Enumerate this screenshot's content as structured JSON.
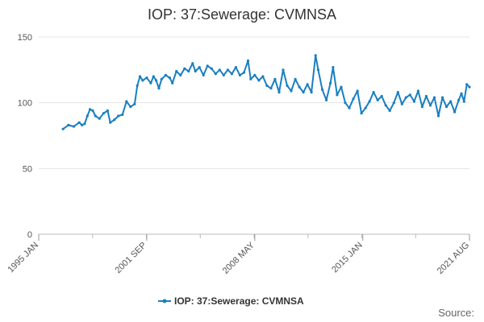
{
  "chart_data": {
    "type": "line",
    "title": "IOP: 37:Sewerage: CVMNSA",
    "xlabel": "",
    "ylabel": "",
    "ylim": [
      0,
      150
    ],
    "y_ticks": [
      0,
      50,
      100,
      150
    ],
    "x_range": [
      "1995-01",
      "2021-08"
    ],
    "x_tick_labels": [
      {
        "label": "1995 JAN",
        "date": "1995-01"
      },
      {
        "label": "2001 SEP",
        "date": "2001-09"
      },
      {
        "label": "2008 MAY",
        "date": "2008-05"
      },
      {
        "label": "2015 JAN",
        "date": "2015-01"
      },
      {
        "label": "2021 AUG",
        "date": "2021-08"
      }
    ],
    "grid": true,
    "legend_position": "bottom",
    "series": [
      {
        "name": "IOP: 37:Sewerage: CVMNSA",
        "color": "#1a7fc1",
        "points": [
          [
            "1996-07",
            80
          ],
          [
            "1996-11",
            83
          ],
          [
            "1997-03",
            82
          ],
          [
            "1997-07",
            85
          ],
          [
            "1997-09",
            83
          ],
          [
            "1997-11",
            84
          ],
          [
            "1998-01",
            90
          ],
          [
            "1998-03",
            95
          ],
          [
            "1998-05",
            94
          ],
          [
            "1998-07",
            90
          ],
          [
            "1998-10",
            88
          ],
          [
            "1999-01",
            92
          ],
          [
            "1999-04",
            94
          ],
          [
            "1999-06",
            85
          ],
          [
            "1999-09",
            87
          ],
          [
            "1999-12",
            90
          ],
          [
            "2000-03",
            91
          ],
          [
            "2000-06",
            101
          ],
          [
            "2000-09",
            97
          ],
          [
            "2000-12",
            99
          ],
          [
            "2001-02",
            113
          ],
          [
            "2001-04",
            120
          ],
          [
            "2001-06",
            117
          ],
          [
            "2001-09",
            119
          ],
          [
            "2001-12",
            115
          ],
          [
            "2002-02",
            120
          ],
          [
            "2002-04",
            117
          ],
          [
            "2002-06",
            111
          ],
          [
            "2002-08",
            118
          ],
          [
            "2002-11",
            121
          ],
          [
            "2003-02",
            119
          ],
          [
            "2003-04",
            115
          ],
          [
            "2003-07",
            124
          ],
          [
            "2003-10",
            121
          ],
          [
            "2004-01",
            126
          ],
          [
            "2004-04",
            124
          ],
          [
            "2004-07",
            130
          ],
          [
            "2004-09",
            124
          ],
          [
            "2004-12",
            127
          ],
          [
            "2005-03",
            121
          ],
          [
            "2005-06",
            128
          ],
          [
            "2005-09",
            126
          ],
          [
            "2005-12",
            122
          ],
          [
            "2006-03",
            125
          ],
          [
            "2006-06",
            121
          ],
          [
            "2006-09",
            125
          ],
          [
            "2006-12",
            122
          ],
          [
            "2007-03",
            127
          ],
          [
            "2007-06",
            121
          ],
          [
            "2007-09",
            123
          ],
          [
            "2007-12",
            132
          ],
          [
            "2008-02",
            118
          ],
          [
            "2008-05",
            121
          ],
          [
            "2008-08",
            117
          ],
          [
            "2008-11",
            120
          ],
          [
            "2009-02",
            113
          ],
          [
            "2009-05",
            111
          ],
          [
            "2009-08",
            118
          ],
          [
            "2009-11",
            108
          ],
          [
            "2010-02",
            125
          ],
          [
            "2010-05",
            113
          ],
          [
            "2010-08",
            109
          ],
          [
            "2010-11",
            118
          ],
          [
            "2011-02",
            112
          ],
          [
            "2011-05",
            108
          ],
          [
            "2011-08",
            114
          ],
          [
            "2011-11",
            108
          ],
          [
            "2012-02",
            136
          ],
          [
            "2012-04",
            125
          ],
          [
            "2012-07",
            110
          ],
          [
            "2012-10",
            102
          ],
          [
            "2013-01",
            115
          ],
          [
            "2013-03",
            127
          ],
          [
            "2013-06",
            106
          ],
          [
            "2013-09",
            112
          ],
          [
            "2013-12",
            100
          ],
          [
            "2014-03",
            96
          ],
          [
            "2014-06",
            103
          ],
          [
            "2014-09",
            109
          ],
          [
            "2014-12",
            92
          ],
          [
            "2015-03",
            96
          ],
          [
            "2015-06",
            101
          ],
          [
            "2015-09",
            108
          ],
          [
            "2015-12",
            102
          ],
          [
            "2016-03",
            105
          ],
          [
            "2016-06",
            98
          ],
          [
            "2016-09",
            94
          ],
          [
            "2016-12",
            100
          ],
          [
            "2017-03",
            108
          ],
          [
            "2017-06",
            99
          ],
          [
            "2017-09",
            104
          ],
          [
            "2017-12",
            106
          ],
          [
            "2018-03",
            101
          ],
          [
            "2018-06",
            109
          ],
          [
            "2018-09",
            97
          ],
          [
            "2018-12",
            105
          ],
          [
            "2019-03",
            98
          ],
          [
            "2019-06",
            104
          ],
          [
            "2019-09",
            90
          ],
          [
            "2019-12",
            104
          ],
          [
            "2020-03",
            97
          ],
          [
            "2020-06",
            101
          ],
          [
            "2020-09",
            93
          ],
          [
            "2020-12",
            102
          ],
          [
            "2021-02",
            107
          ],
          [
            "2021-04",
            101
          ],
          [
            "2021-06",
            114
          ],
          [
            "2021-08",
            112
          ]
        ]
      }
    ]
  },
  "source_label": "Source:"
}
